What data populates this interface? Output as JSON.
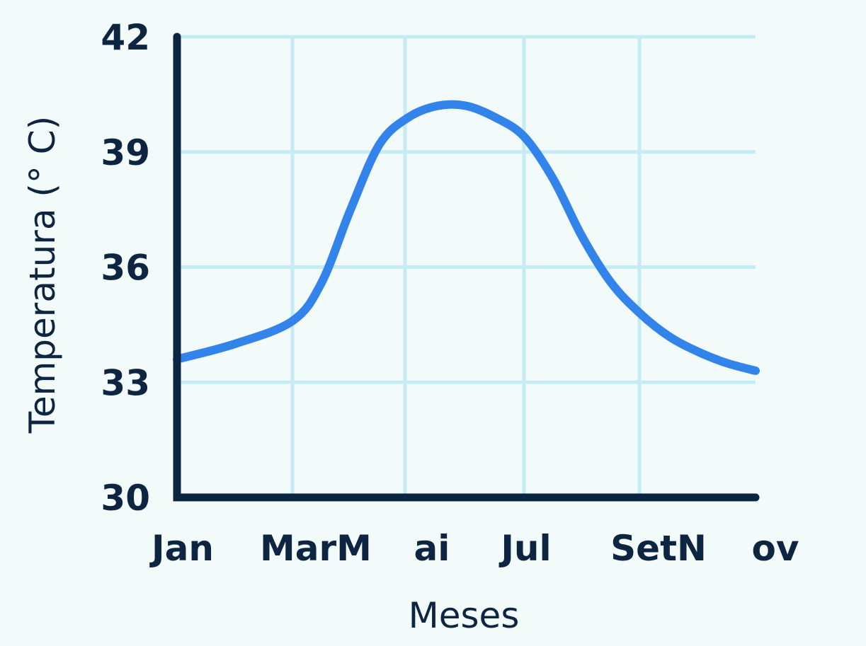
{
  "chart_data": {
    "type": "line",
    "title": "",
    "xlabel": "Meses",
    "ylabel": "Temperatura (° C)",
    "x_tick_labels": [
      "Jan",
      "MarM",
      "ai",
      "Jul",
      "SetN",
      "ov"
    ],
    "y_ticks": [
      30,
      33,
      36,
      39,
      42
    ],
    "ylim": [
      30,
      42
    ],
    "grid": true,
    "series": [
      {
        "color": "#3384ea",
        "points": [
          {
            "x": 0.0,
            "y": 33.6
          },
          {
            "x": 1.0,
            "y": 34.0
          },
          {
            "x": 2.0,
            "y": 34.6
          },
          {
            "x": 2.5,
            "y": 35.6
          },
          {
            "x": 3.0,
            "y": 37.5
          },
          {
            "x": 3.5,
            "y": 39.2
          },
          {
            "x": 4.0,
            "y": 39.9
          },
          {
            "x": 4.5,
            "y": 40.2
          },
          {
            "x": 5.0,
            "y": 40.2
          },
          {
            "x": 5.5,
            "y": 39.9
          },
          {
            "x": 6.0,
            "y": 39.4
          },
          {
            "x": 6.5,
            "y": 38.3
          },
          {
            "x": 7.0,
            "y": 36.8
          },
          {
            "x": 7.5,
            "y": 35.6
          },
          {
            "x": 8.0,
            "y": 34.8
          },
          {
            "x": 8.5,
            "y": 34.2
          },
          {
            "x": 9.0,
            "y": 33.8
          },
          {
            "x": 9.5,
            "y": 33.5
          },
          {
            "x": 10.0,
            "y": 33.3
          }
        ]
      }
    ],
    "colors": {
      "background": "#f2fbfa",
      "grid": "#c5ecf5",
      "axis": "#0b2440",
      "text": "#0e2542",
      "series": "#3384ea"
    }
  }
}
